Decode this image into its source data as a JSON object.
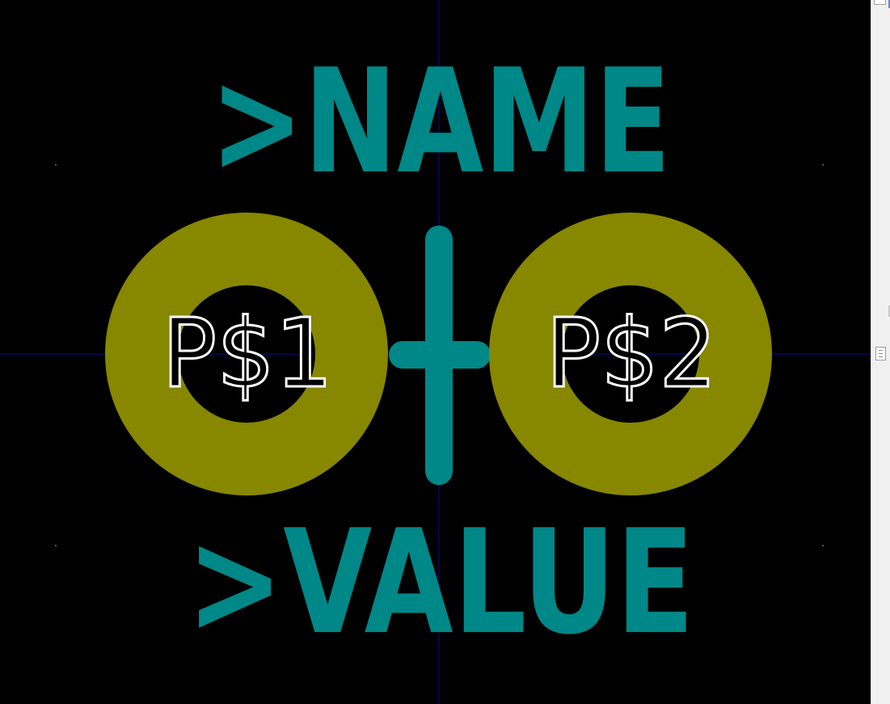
{
  "editor": {
    "name_placeholder": ">NAME",
    "value_placeholder": ">VALUE",
    "pads": [
      {
        "label": "P$1"
      },
      {
        "label": "P$2"
      }
    ]
  },
  "colors": {
    "background": "#000000",
    "silkscreen_text": "#008787",
    "pad_copper": "#878700",
    "pad_hole": "#000000",
    "pad_label": "#ffffff",
    "grid_axis": "#0a0a9a",
    "grid_dot": "#555555",
    "scrollbar_bg": "#f0f0f0"
  },
  "icons": {
    "origin_marker": "origin-cross-icon",
    "scroll_thumb": "scroll-thumb-grip-icon"
  }
}
